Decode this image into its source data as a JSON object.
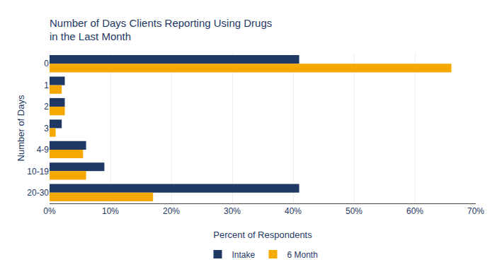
{
  "chart_data": {
    "type": "bar",
    "orientation": "horizontal",
    "title": "Number of Days Clients Reporting Using Drugs\nin the Last Month",
    "xlabel": "Percent of Respondents",
    "ylabel": "Number of Days",
    "categories": [
      "0",
      "1",
      "2",
      "3",
      "4-9",
      "10-19",
      "20-30"
    ],
    "series": [
      {
        "name": "Intake",
        "color": "#1F3864",
        "values": [
          41,
          2.5,
          2.5,
          2,
          6,
          9,
          41
        ]
      },
      {
        "name": "6 Month",
        "color": "#F5A800",
        "values": [
          66,
          2,
          2.5,
          1,
          5.5,
          6,
          17
        ]
      }
    ],
    "xlim": [
      0,
      70
    ],
    "xticks": [
      {
        "value": 0,
        "label": "0%"
      },
      {
        "value": 10,
        "label": "10%"
      },
      {
        "value": 20,
        "label": "20%"
      },
      {
        "value": 30,
        "label": "30%"
      },
      {
        "value": 40,
        "label": "40%"
      },
      {
        "value": 50,
        "label": "50%"
      },
      {
        "value": 60,
        "label": "60%"
      },
      {
        "value": 70,
        "label": "70%"
      }
    ],
    "grid": true,
    "legend": "bottom"
  }
}
